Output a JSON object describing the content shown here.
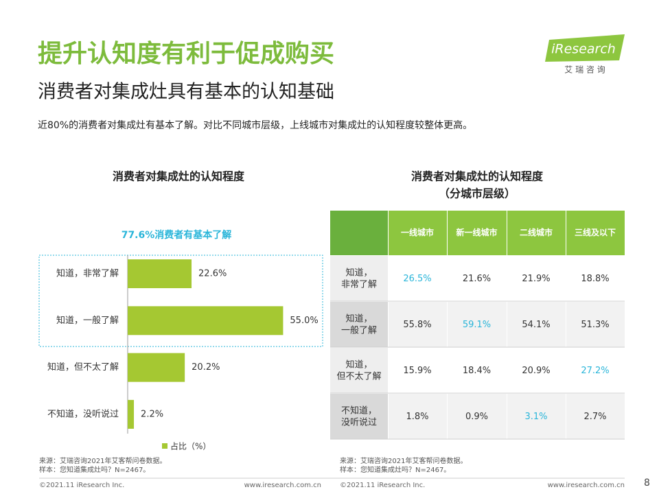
{
  "title": "提升认知度有利于促成购买",
  "subtitle": "消费者对集成灶具有基本的认知基础",
  "summary": "近80%的消费者对集成灶有基本了解。对比不同城市层级，上线城市对集成灶的认知程度较整体更高。",
  "logo": {
    "brand": "iResearch",
    "tagline": "艾 瑞 咨 询"
  },
  "chart_data": {
    "type": "bar",
    "orientation": "horizontal",
    "title": "消费者对集成灶的认知程度",
    "annotation": "77.6%消费者有基本了解",
    "categories": [
      "知道，非常了解",
      "知道，一般了解",
      "知道，但不太了解",
      "不知道，没听说过"
    ],
    "values": [
      22.6,
      55.0,
      20.2,
      2.2
    ],
    "value_labels": [
      "22.6%",
      "55.0%",
      "20.2%",
      "2.2%"
    ],
    "color": "#a5c832",
    "legend": "占比（%）",
    "xlim": [
      0,
      60
    ]
  },
  "table": {
    "title": [
      "消费者对集成灶的认知程度",
      "（分城市层级）"
    ],
    "columns": [
      "一线城市",
      "新一线城市",
      "二线城市",
      "三线及以下"
    ],
    "highlight_color": "#29b5d9",
    "rows": [
      {
        "label": [
          "知道，",
          "非常了解"
        ],
        "cells": [
          "26.5%",
          "21.6%",
          "21.9%",
          "18.8%"
        ],
        "highlight": 0
      },
      {
        "label": [
          "知道，",
          "一般了解"
        ],
        "cells": [
          "55.8%",
          "59.1%",
          "54.1%",
          "51.3%"
        ],
        "highlight": 1
      },
      {
        "label": [
          "知道，",
          "但不太了解"
        ],
        "cells": [
          "15.9%",
          "18.4%",
          "20.9%",
          "27.2%"
        ],
        "highlight": 3
      },
      {
        "label": [
          "不知道，",
          "没听说过"
        ],
        "cells": [
          "1.8%",
          "0.9%",
          "3.1%",
          "2.7%"
        ],
        "highlight": 2
      }
    ]
  },
  "sources": [
    "来源：艾瑞咨询2021年艾客帮问卷数据。",
    "样本：您知道集成灶吗？N=2467。"
  ],
  "footer": {
    "copyright": "©2021.11 iResearch Inc.",
    "url": "www.iresearch.com.cn",
    "page": "8"
  }
}
